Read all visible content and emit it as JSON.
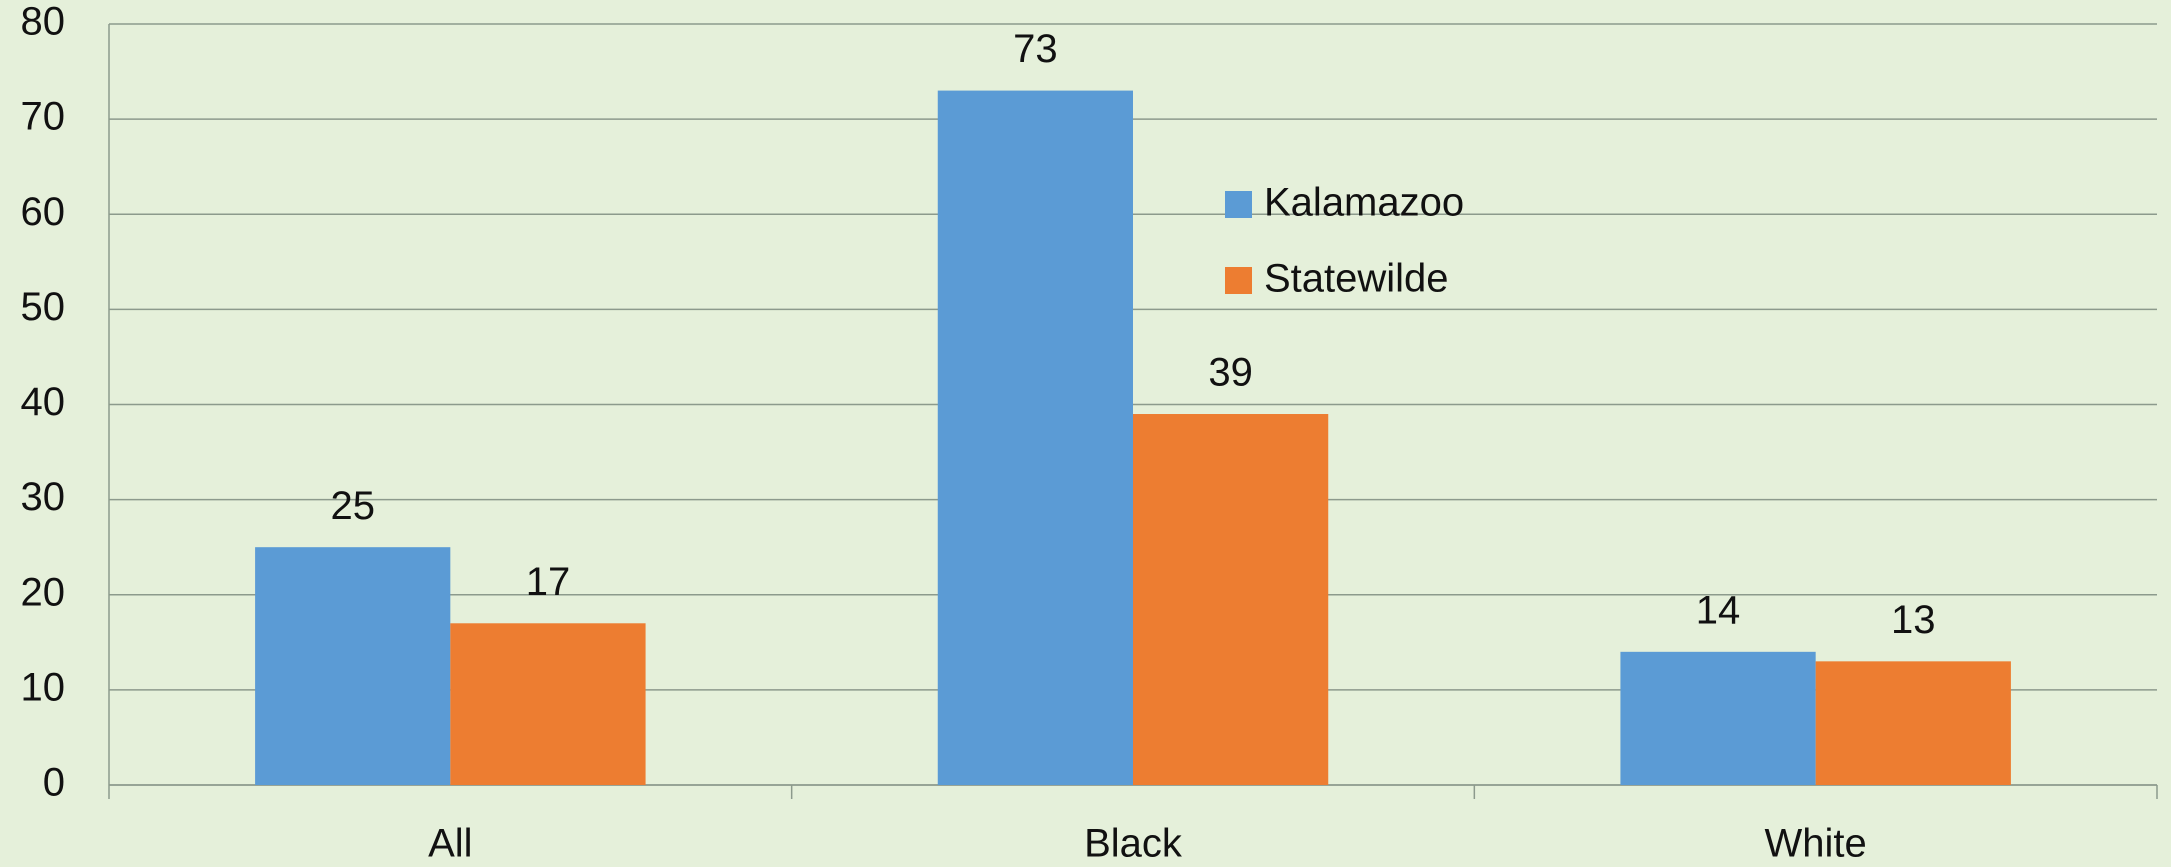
{
  "chart_data": {
    "type": "bar",
    "categories": [
      "All",
      "Black",
      "White"
    ],
    "series": [
      {
        "name": "Kalamazoo",
        "color": "#5b9bd5",
        "values": [
          25,
          73,
          14
        ]
      },
      {
        "name": "Statewilde",
        "color": "#ed7d31",
        "values": [
          17,
          39,
          13
        ]
      }
    ],
    "ylim": [
      0,
      80
    ],
    "yticks": [
      0,
      10,
      20,
      30,
      40,
      50,
      60,
      70,
      80
    ],
    "grid": true,
    "legend": "top-center"
  }
}
